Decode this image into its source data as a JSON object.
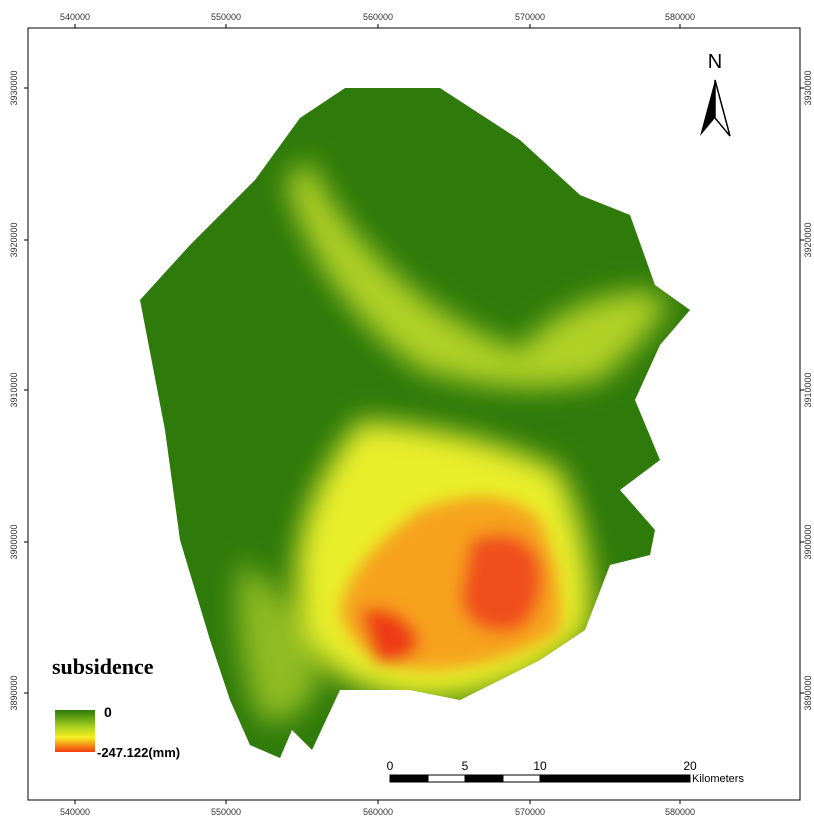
{
  "map": {
    "x_labels": [
      "540000",
      "550000",
      "560000",
      "570000",
      "580000"
    ],
    "y_labels": [
      "3930000",
      "3920000",
      "3910000",
      "3900000",
      "3890000"
    ],
    "north": "N",
    "legend": {
      "title": "subsidence",
      "max": "0",
      "min": "-247.122(mm)"
    },
    "scale_bar": {
      "labels": [
        "0",
        "5",
        "10",
        "20"
      ],
      "unit": "Kilometers"
    }
  }
}
